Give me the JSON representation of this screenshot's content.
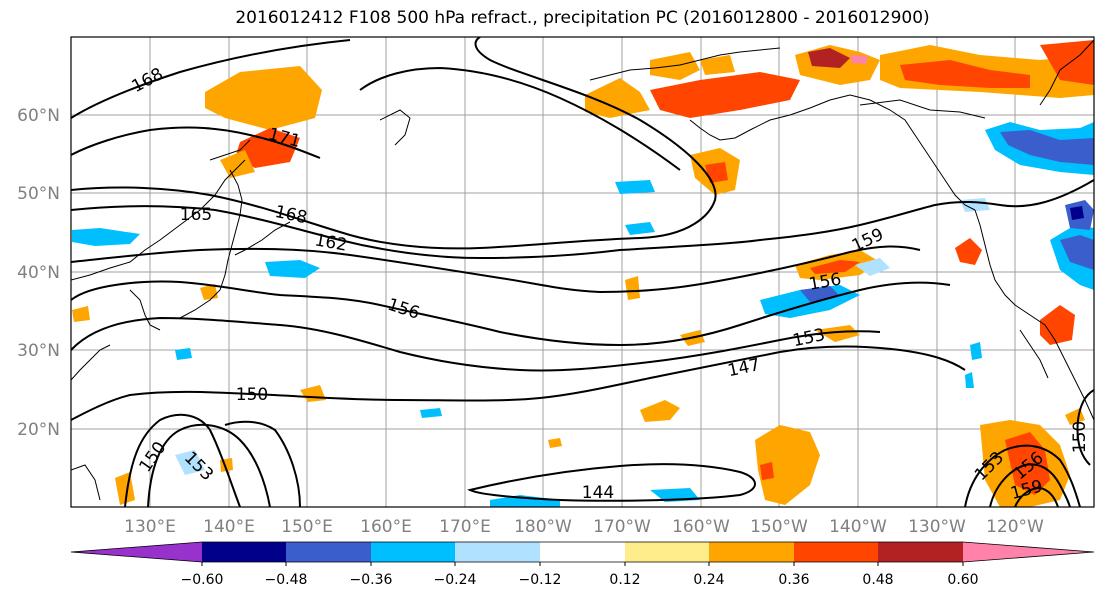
{
  "title": "2016012412 F108 500 hPa refract., precipitation PC (2016012800 - 2016012900)",
  "lat_ticks": [
    "60°N",
    "50°N",
    "40°N",
    "30°N",
    "20°N"
  ],
  "lon_ticks": [
    "130°E",
    "140°E",
    "150°E",
    "160°E",
    "170°E",
    "180°W",
    "170°W",
    "160°W",
    "150°W",
    "140°W",
    "130°W",
    "120°W"
  ],
  "colorbar": {
    "levels": [
      "−0.60",
      "−0.48",
      "−0.36",
      "−0.24",
      "−0.12",
      "0.12",
      "0.24",
      "0.36",
      "0.48",
      "0.60"
    ],
    "colors": [
      "#9932cc",
      "#00008b",
      "#3a5fcd",
      "#00bfff",
      "#b0e2ff",
      "#ffffff",
      "#ffec8b",
      "#ffa500",
      "#ff4500",
      "#b22222",
      "#ff82ab"
    ]
  },
  "contour_labels": [
    "168",
    "171",
    "165",
    "168",
    "162",
    "159",
    "156",
    "156",
    "153",
    "147",
    "150",
    "150",
    "153",
    "144",
    "153",
    "156",
    "159",
    "150"
  ]
}
